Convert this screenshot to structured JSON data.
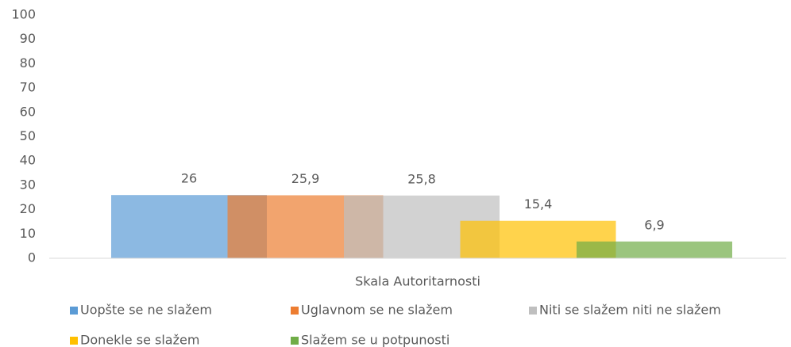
{
  "chart_data": {
    "type": "bar",
    "categories": [
      "Skala Autoritarnosti"
    ],
    "series": [
      {
        "name": "Uopšte se ne slažem",
        "color": "#5b9bd5",
        "values": [
          26
        ]
      },
      {
        "name": "Uglavnom se ne slažem",
        "color": "#ed7d31",
        "values": [
          25.9
        ],
        "value_labels": [
          "25,9"
        ]
      },
      {
        "name": "Niti se slažem niti ne slažem",
        "color": "#bfbfbf",
        "values": [
          25.8
        ],
        "value_labels": [
          "25,8"
        ]
      },
      {
        "name": "Donekle se slažem",
        "color": "#ffc000",
        "values": [
          15.4
        ],
        "value_labels": [
          "15,4"
        ]
      },
      {
        "name": "Slažem se u potpunosti",
        "color": "#70ad47",
        "values": [
          6.9
        ],
        "value_labels": [
          "6,9"
        ]
      }
    ],
    "ylim": [
      0,
      100
    ],
    "yticks": [
      0,
      10,
      20,
      30,
      40,
      50,
      60,
      70,
      80,
      90,
      100
    ],
    "grid": false,
    "legend": "bottom"
  }
}
